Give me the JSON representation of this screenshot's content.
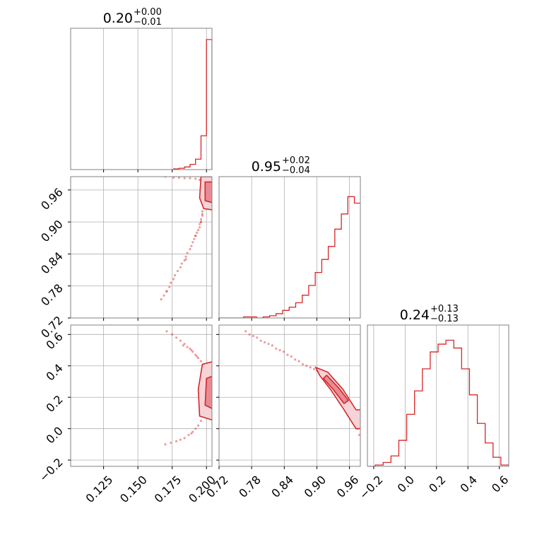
{
  "figure": {
    "colors": {
      "line": "#d62728",
      "fill_inner": "#e88a93",
      "fill_outer": "#f6d3d6",
      "grid": "#b0b0b0",
      "frame": "#808080"
    }
  },
  "chart_data": [
    {
      "type": "histogram",
      "panel": "p0_marginal",
      "title": {
        "median": "0.20",
        "upper": "+0.00",
        "lower": "−0.01"
      },
      "x": [
        0.176,
        0.18,
        0.184,
        0.188,
        0.192,
        0.196,
        0.2,
        0.204
      ],
      "values": [
        0.005,
        0.01,
        0.02,
        0.04,
        0.08,
        0.26,
        1.0
      ],
      "xlim": [
        0.101,
        0.204
      ],
      "xticks": [
        0.125,
        0.15,
        0.175,
        0.2
      ],
      "grid": true
    },
    {
      "type": "histogram",
      "panel": "p1_marginal",
      "title": {
        "median": "0.95",
        "upper": "+0.02",
        "lower": "−0.04"
      },
      "x": [
        0.705,
        0.717,
        0.729,
        0.741,
        0.753,
        0.765,
        0.777,
        0.789,
        0.801,
        0.813,
        0.825,
        0.837,
        0.849,
        0.861,
        0.873,
        0.885,
        0.897,
        0.909,
        0.921,
        0.933,
        0.945,
        0.957,
        0.969,
        0.981
      ],
      "values": [
        0.0,
        0.0,
        0.0,
        0.0,
        0.0,
        0.008,
        0.008,
        0.0,
        0.008,
        0.017,
        0.033,
        0.058,
        0.083,
        0.117,
        0.175,
        0.25,
        0.35,
        0.45,
        0.55,
        0.683,
        0.8,
        0.933,
        0.883
      ],
      "xlim": [
        0.72,
        0.98
      ],
      "xticks": [
        0.72,
        0.78,
        0.84,
        0.9,
        0.96
      ],
      "grid": true
    },
    {
      "type": "histogram",
      "panel": "p2_marginal",
      "title": {
        "median": "0.24",
        "upper": "+0.13",
        "lower": "−0.13"
      },
      "x": [
        -0.24,
        -0.19,
        -0.14,
        -0.09,
        -0.04,
        0.01,
        0.06,
        0.11,
        0.16,
        0.21,
        0.26,
        0.31,
        0.36,
        0.41,
        0.46,
        0.51,
        0.56,
        0.61,
        0.66
      ],
      "values": [
        0.0,
        0.01,
        0.03,
        0.08,
        0.2,
        0.4,
        0.58,
        0.75,
        0.88,
        0.94,
        0.97,
        0.91,
        0.75,
        0.55,
        0.33,
        0.18,
        0.07,
        0.01
      ],
      "xlim": [
        -0.24,
        0.66
      ],
      "xticks": [
        -0.2,
        0.0,
        0.2,
        0.4,
        0.6
      ],
      "grid": true
    },
    {
      "type": "scatter",
      "panel": "p0_vs_p1",
      "xlim": [
        0.101,
        0.204
      ],
      "ylim": [
        0.72,
        0.985
      ],
      "xticks": [
        0.125,
        0.15,
        0.175,
        0.2
      ],
      "yticks": [
        0.72,
        0.78,
        0.84,
        0.9,
        0.96
      ],
      "points": [
        [
          0.17,
          0.985
        ],
        [
          0.176,
          0.983
        ],
        [
          0.18,
          0.983
        ],
        [
          0.184,
          0.982
        ],
        [
          0.188,
          0.982
        ],
        [
          0.192,
          0.981
        ],
        [
          0.195,
          0.979
        ],
        [
          0.197,
          0.975
        ],
        [
          0.199,
          0.97
        ],
        [
          0.198,
          0.965
        ],
        [
          0.199,
          0.958
        ],
        [
          0.198,
          0.95
        ],
        [
          0.199,
          0.944
        ],
        [
          0.198,
          0.935
        ],
        [
          0.198,
          0.928
        ],
        [
          0.197,
          0.92
        ],
        [
          0.197,
          0.912
        ],
        [
          0.196,
          0.905
        ],
        [
          0.196,
          0.9
        ],
        [
          0.195,
          0.896
        ],
        [
          0.195,
          0.89
        ],
        [
          0.194,
          0.885
        ],
        [
          0.193,
          0.88
        ],
        [
          0.192,
          0.874
        ],
        [
          0.191,
          0.868
        ],
        [
          0.19,
          0.862
        ],
        [
          0.189,
          0.855
        ],
        [
          0.188,
          0.849
        ],
        [
          0.186,
          0.842
        ],
        [
          0.185,
          0.835
        ],
        [
          0.184,
          0.828
        ],
        [
          0.182,
          0.822
        ],
        [
          0.181,
          0.815
        ],
        [
          0.179,
          0.808
        ],
        [
          0.177,
          0.8
        ],
        [
          0.176,
          0.793
        ],
        [
          0.174,
          0.786
        ],
        [
          0.173,
          0.778
        ],
        [
          0.171,
          0.77
        ],
        [
          0.169,
          0.762
        ],
        [
          0.167,
          0.755
        ],
        [
          0.171,
          0.77
        ],
        [
          0.185,
          0.83
        ],
        [
          0.192,
          0.874
        ],
        [
          0.196,
          0.9
        ],
        [
          0.197,
          0.915
        ]
      ],
      "contour_levels": [
        "outer",
        "inner"
      ],
      "grid": true
    },
    {
      "type": "scatter",
      "panel": "p0_vs_p2",
      "xlim": [
        0.101,
        0.204
      ],
      "ylim": [
        -0.24,
        0.66
      ],
      "xticks": [
        0.125,
        0.15,
        0.175,
        0.2
      ],
      "yticks": [
        -0.2,
        0.0,
        0.2,
        0.4,
        0.6
      ],
      "points": [
        [
          0.171,
          0.62
        ],
        [
          0.175,
          0.6
        ],
        [
          0.178,
          0.58
        ],
        [
          0.181,
          0.56
        ],
        [
          0.184,
          0.54
        ],
        [
          0.186,
          0.52
        ],
        [
          0.188,
          0.51
        ],
        [
          0.19,
          0.49
        ],
        [
          0.192,
          0.47
        ],
        [
          0.194,
          0.45
        ],
        [
          0.196,
          0.43
        ],
        [
          0.198,
          0.4
        ],
        [
          0.196,
          0.05
        ],
        [
          0.194,
          0.02
        ],
        [
          0.192,
          0.0
        ],
        [
          0.19,
          -0.02
        ],
        [
          0.187,
          -0.04
        ],
        [
          0.184,
          -0.06
        ],
        [
          0.181,
          -0.07
        ],
        [
          0.178,
          -0.08
        ],
        [
          0.174,
          -0.09
        ],
        [
          0.17,
          -0.1
        ],
        [
          0.183,
          0.53
        ],
        [
          0.189,
          0.5
        ],
        [
          0.193,
          0.46
        ],
        [
          0.189,
          -0.03
        ]
      ],
      "contour_levels": [
        "outer",
        "inner"
      ],
      "grid": true
    },
    {
      "type": "scatter",
      "panel": "p1_vs_p2",
      "xlim": [
        0.72,
        0.98
      ],
      "ylim": [
        -0.24,
        0.66
      ],
      "xticks": [
        0.72,
        0.78,
        0.84,
        0.9,
        0.96
      ],
      "yticks": [
        -0.2,
        0.0,
        0.2,
        0.4,
        0.6
      ],
      "points": [
        [
          0.769,
          0.62
        ],
        [
          0.776,
          0.6
        ],
        [
          0.783,
          0.59
        ],
        [
          0.79,
          0.58
        ],
        [
          0.797,
          0.56
        ],
        [
          0.804,
          0.55
        ],
        [
          0.811,
          0.54
        ],
        [
          0.818,
          0.53
        ],
        [
          0.825,
          0.51
        ],
        [
          0.832,
          0.5
        ],
        [
          0.839,
          0.49
        ],
        [
          0.846,
          0.47
        ],
        [
          0.853,
          0.46
        ],
        [
          0.86,
          0.44
        ],
        [
          0.867,
          0.43
        ],
        [
          0.874,
          0.41
        ],
        [
          0.881,
          0.4
        ],
        [
          0.888,
          0.39
        ],
        [
          0.895,
          0.38
        ],
        [
          0.9,
          0.37
        ],
        [
          0.906,
          0.36
        ],
        [
          0.913,
          0.34
        ],
        [
          0.92,
          0.31
        ],
        [
          0.927,
          0.28
        ],
        [
          0.934,
          0.25
        ],
        [
          0.941,
          0.22
        ],
        [
          0.948,
          0.19
        ],
        [
          0.955,
          0.16
        ],
        [
          0.962,
          0.12
        ],
        [
          0.969,
          0.07
        ],
        [
          0.975,
          0.0
        ],
        [
          0.978,
          -0.04
        ],
        [
          0.974,
          0.02
        ],
        [
          0.966,
          0.1
        ],
        [
          0.958,
          0.14
        ],
        [
          0.95,
          0.18
        ],
        [
          0.944,
          0.21
        ],
        [
          0.936,
          0.24
        ],
        [
          0.928,
          0.28
        ]
      ],
      "contour_levels": [
        "outer",
        "inner"
      ],
      "grid": true
    }
  ]
}
